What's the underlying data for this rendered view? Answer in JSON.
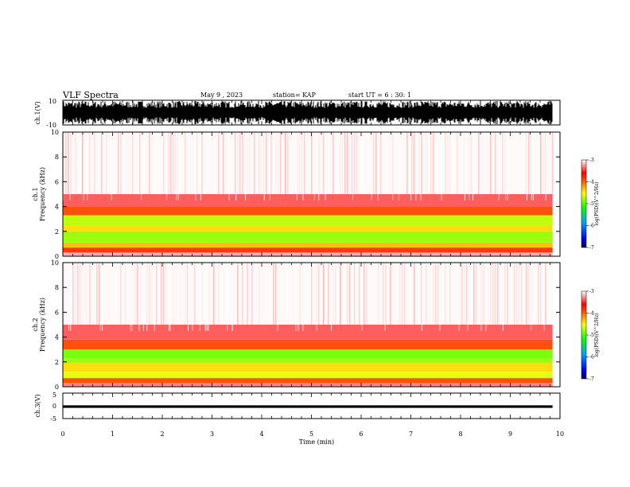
{
  "header": {
    "title": "VLF Spectra",
    "date": "May 9 , 2023",
    "station": "station= KAP",
    "start": "start UT = 6 : 30: 1"
  },
  "chart_data": [
    {
      "type": "line",
      "name": "ch1-waveform",
      "ylabel": "ch.1(V)",
      "xlim": [
        0,
        10
      ],
      "ylim": [
        -10,
        10
      ],
      "yticks": [
        "10",
        "-10"
      ],
      "data_extent_min": 9.85,
      "description_values": {
        "fill": "dense",
        "amplitude": [
          -10,
          10
        ]
      }
    },
    {
      "type": "heatmap",
      "name": "ch1-spectrogram",
      "ylabel": "ch.1 Frequency (kHz)",
      "xlim": [
        0,
        10
      ],
      "ylim": [
        0,
        10
      ],
      "yticks": [
        "0",
        "2",
        "4",
        "6",
        "8",
        "10"
      ],
      "bands": [
        {
          "from": 0.0,
          "to": 0.3,
          "level": -3.2
        },
        {
          "from": 0.3,
          "to": 0.7,
          "level": -3.8
        },
        {
          "from": 0.7,
          "to": 1.1,
          "level": -4.3
        },
        {
          "from": 1.1,
          "to": 2.0,
          "level": -4.8
        },
        {
          "from": 2.0,
          "to": 2.5,
          "level": -4.4
        },
        {
          "from": 2.5,
          "to": 3.3,
          "level": -4.7
        },
        {
          "from": 3.3,
          "to": 4.0,
          "level": -3.9
        },
        {
          "from": 4.0,
          "to": 5.0,
          "level": -3.4
        },
        {
          "from": 5.0,
          "to": 10.0,
          "level": -3.05
        }
      ],
      "colorbar": {
        "label": "log(PSD)(V^2/Hz)",
        "ticks": [
          "-3",
          "-4",
          "-5",
          "-6",
          "-7"
        ],
        "range": [
          -7,
          -3
        ]
      }
    },
    {
      "type": "heatmap",
      "name": "ch2-spectrogram",
      "ylabel": "ch.2 Frequency (kHz)",
      "xlim": [
        0,
        10
      ],
      "ylim": [
        0,
        10
      ],
      "yticks": [
        "0",
        "2",
        "4",
        "6",
        "8",
        "10"
      ],
      "bands": [
        {
          "from": 0.0,
          "to": 0.3,
          "level": -3.3
        },
        {
          "from": 0.3,
          "to": 0.7,
          "level": -3.9
        },
        {
          "from": 0.7,
          "to": 1.2,
          "level": -4.6
        },
        {
          "from": 1.2,
          "to": 1.9,
          "level": -4.4
        },
        {
          "from": 1.9,
          "to": 2.3,
          "level": -4.8
        },
        {
          "from": 2.3,
          "to": 3.0,
          "level": -4.9
        },
        {
          "from": 3.0,
          "to": 3.8,
          "level": -3.9
        },
        {
          "from": 3.8,
          "to": 5.0,
          "level": -3.4
        },
        {
          "from": 5.0,
          "to": 10.0,
          "level": -3.05
        }
      ],
      "colorbar": {
        "label": "log(PSD)(V^2/Hz)",
        "ticks": [
          "-3",
          "-4",
          "-5",
          "-6",
          "-7"
        ],
        "range": [
          -7,
          -3
        ]
      }
    },
    {
      "type": "line",
      "name": "ch3-waveform",
      "ylabel": "ch.3(V)",
      "xlabel": "Time (min)",
      "xlim": [
        0,
        10
      ],
      "ylim": [
        -5,
        5
      ],
      "yticks": [
        "5",
        "0",
        "-5"
      ],
      "xticks": [
        "0",
        "1",
        "2",
        "3",
        "4",
        "5",
        "6",
        "7",
        "8",
        "9",
        "10"
      ],
      "band": [
        -0.8,
        0.2
      ]
    }
  ]
}
